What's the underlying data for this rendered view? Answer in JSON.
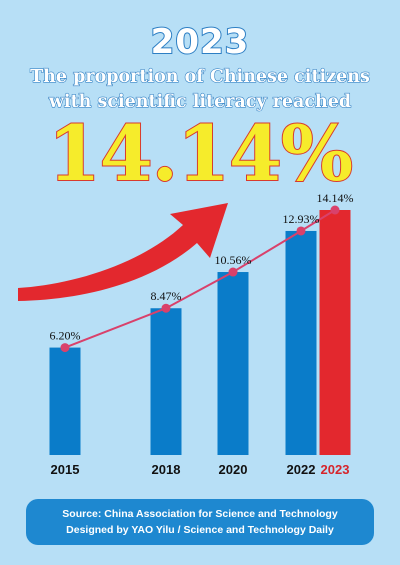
{
  "header": {
    "year": "2023",
    "headline_line1": "The proportion of Chinese citizens",
    "headline_line2": "with scientific literacy reached",
    "big_value": "14.14%"
  },
  "chart_data": {
    "type": "bar",
    "categories": [
      "2015",
      "2018",
      "2020",
      "2022",
      "2023"
    ],
    "values": [
      6.2,
      8.47,
      10.56,
      12.93,
      14.14
    ],
    "data_labels": [
      "6.20%",
      "8.47%",
      "10.56%",
      "12.93%",
      "14.14%"
    ],
    "unit": "%",
    "trend_line": true,
    "highlight_category": "2023",
    "ylim": [
      0,
      14.14
    ],
    "grid": false,
    "colors": {
      "bar": "#0a7cc9",
      "highlight_bar": "#e3282e",
      "trend_line": "#d9416b",
      "highlight_label": "#d6252b",
      "arrow": "#e3282e"
    }
  },
  "footer": {
    "source_line": "Source: China Association for Science and Technology",
    "designer_line": "Designed by YAO Yilu / Science and Technology Daily"
  }
}
